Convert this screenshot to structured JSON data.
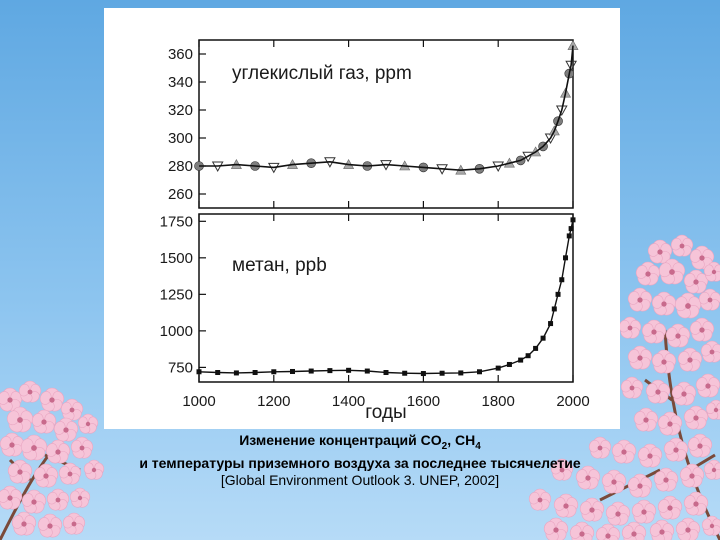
{
  "caption": {
    "line1_prefix": "Изменение концентраций CO",
    "line1_sub1": "2",
    "line1_mid": ", CH",
    "line1_sub2": "4",
    "line2": "и температуры приземного воздуха за последнее тысячелетие",
    "source": "[Global Environment Outlook 3. UNEP, 2002]"
  },
  "colors": {
    "sky_top": "#5fa8e2",
    "blossom": "#f6c4d8",
    "blossom_center": "#c86a8c",
    "branch": "#7a4a3a",
    "line": "#111111",
    "co2_markers": "#8a8a8a"
  },
  "icons": [
    "cherry-blossom-branch-left",
    "cherry-blossom-branch-right"
  ],
  "chart_data": [
    {
      "type": "scatter",
      "label": "углекислый газ, ppm",
      "x_range": [
        1000,
        2000
      ],
      "ylim": [
        250,
        370
      ],
      "y_ticks": [
        260,
        280,
        300,
        320,
        340,
        360
      ],
      "x_ticks": [
        1000,
        1200,
        1400,
        1600,
        1800,
        2000
      ],
      "series": [
        {
          "x": [
            1000,
            1050,
            1100,
            1150,
            1200,
            1250,
            1300,
            1350,
            1400,
            1450,
            1500,
            1550,
            1600,
            1650,
            1700,
            1750,
            1800,
            1830,
            1860,
            1880,
            1900,
            1920,
            1940,
            1950,
            1960,
            1970,
            1980,
            1990,
            1995,
            2000
          ],
          "y": [
            280,
            280,
            281,
            280,
            279,
            281,
            282,
            283,
            281,
            280,
            281,
            280,
            279,
            278,
            277,
            278,
            280,
            282,
            284,
            287,
            290,
            294,
            300,
            305,
            312,
            320,
            332,
            346,
            352,
            366
          ]
        }
      ]
    },
    {
      "type": "scatter",
      "label": "метан, ppb",
      "x_range": [
        1000,
        2000
      ],
      "ylim": [
        650,
        1800
      ],
      "y_ticks": [
        750,
        1000,
        1250,
        1500,
        1750
      ],
      "x_ticks": [
        1000,
        1200,
        1400,
        1600,
        1800,
        2000
      ],
      "xlabel": "годы",
      "series": [
        {
          "x": [
            1000,
            1050,
            1100,
            1150,
            1200,
            1250,
            1300,
            1350,
            1400,
            1450,
            1500,
            1550,
            1600,
            1650,
            1700,
            1750,
            1800,
            1830,
            1860,
            1880,
            1900,
            1920,
            1940,
            1950,
            1960,
            1970,
            1980,
            1990,
            1995,
            2000
          ],
          "y": [
            720,
            715,
            712,
            715,
            720,
            722,
            725,
            728,
            730,
            725,
            715,
            710,
            708,
            710,
            712,
            720,
            745,
            770,
            800,
            830,
            880,
            950,
            1050,
            1150,
            1250,
            1350,
            1500,
            1650,
            1700,
            1760
          ]
        }
      ]
    }
  ]
}
